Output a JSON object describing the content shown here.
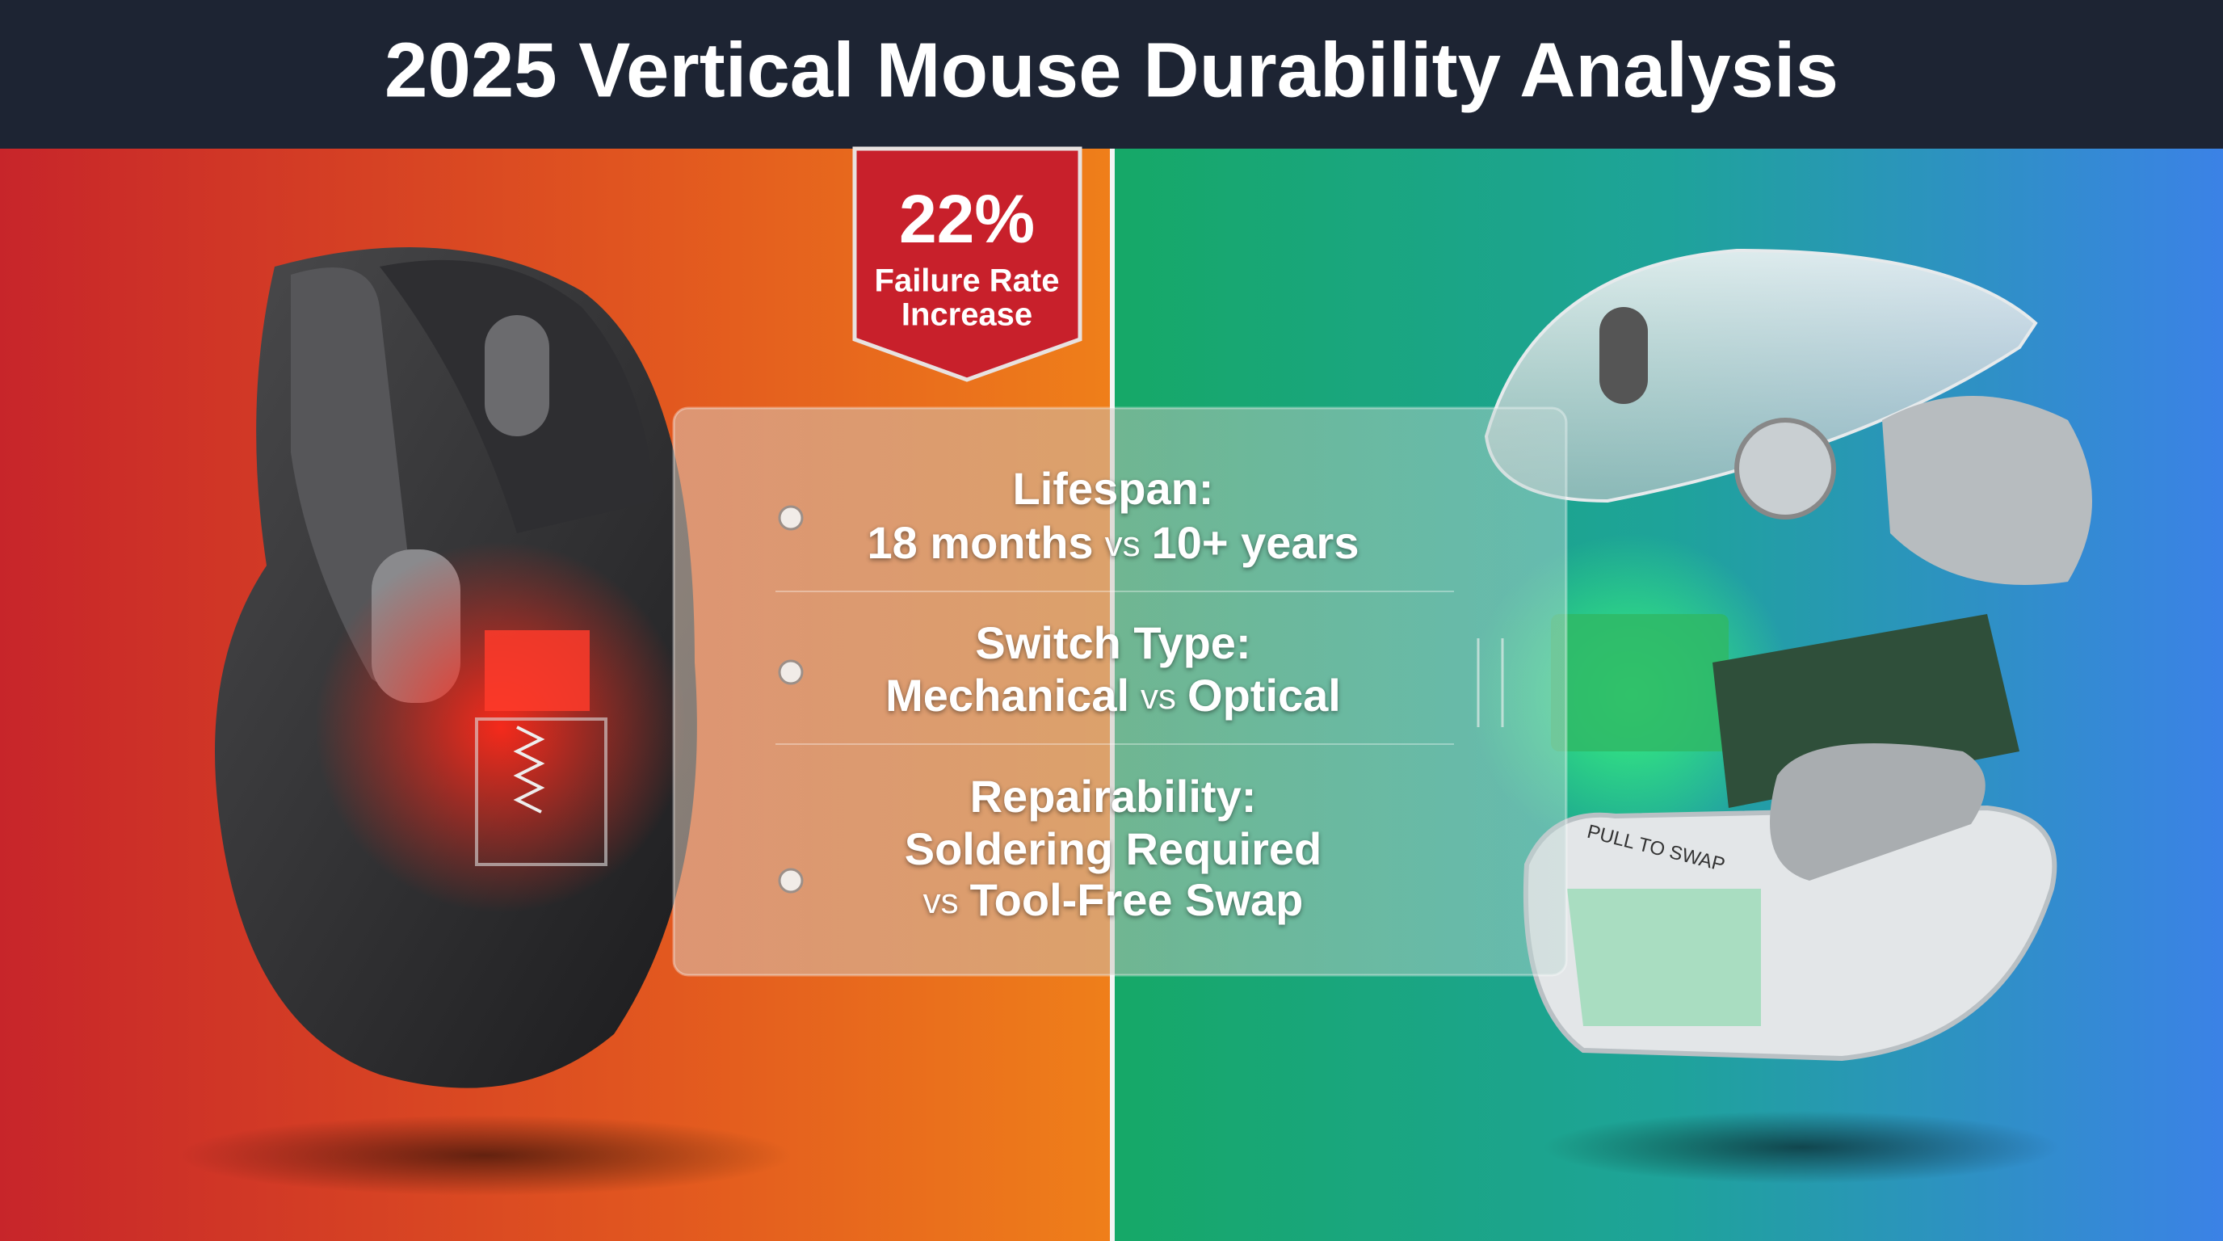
{
  "header": {
    "title": "2025 Vertical Mouse Durability Analysis"
  },
  "badge": {
    "figure": "22%",
    "lines": [
      "Failure Rate",
      "Increase"
    ]
  },
  "comparison": {
    "separator": "vs",
    "rows": [
      {
        "label": "Lifespan:",
        "left": "18 months",
        "right": "10+ years"
      },
      {
        "label": "Switch Type:",
        "left": "Mechanical",
        "right": "Optical"
      },
      {
        "label": "Repairability:",
        "left": "Soldering Required",
        "right": "Tool-Free Swap"
      }
    ]
  },
  "annotation": "PULL TO SWAP"
}
